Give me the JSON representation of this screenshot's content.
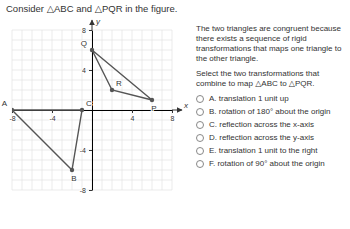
{
  "chart_data": {
    "type": "polygon",
    "title": "Consider △ABC and △PQR in the figure.",
    "x_label": "x",
    "y_label": "y",
    "xlim": [
      -8,
      8
    ],
    "ylim": [
      -8,
      8
    ],
    "xticks": [
      -8,
      -4,
      4,
      8
    ],
    "yticks": [
      -8,
      -4,
      4,
      8
    ],
    "grid": true,
    "series": [
      {
        "x": [
          -8,
          -2,
          -1
        ],
        "values": [
          0,
          -6,
          0
        ],
        "labels": [
          "A",
          "B",
          "C"
        ],
        "color": "#555555",
        "marker": "circle"
      },
      {
        "x": [
          0,
          6,
          2
        ],
        "values": [
          6,
          1,
          2
        ],
        "labels": [
          "Q",
          "P",
          "R"
        ],
        "color": "#555555",
        "marker": "circle"
      }
    ]
  },
  "question": {
    "body": "The two triangles are congruent because there exists a sequence of rigid transformations that maps one triangle to the other triangle.",
    "prompt": "Select the two transformations that combine to map △ABC to △PQR.",
    "options": [
      "A.  translation 1 unit up",
      "B.  rotation of 180° about the origin",
      "C.  reflection across the x-axis",
      "D.  reflection across the y-axis",
      "E.  translation 1 unit to the right",
      "F.  rotation of 90° about the origin"
    ]
  }
}
